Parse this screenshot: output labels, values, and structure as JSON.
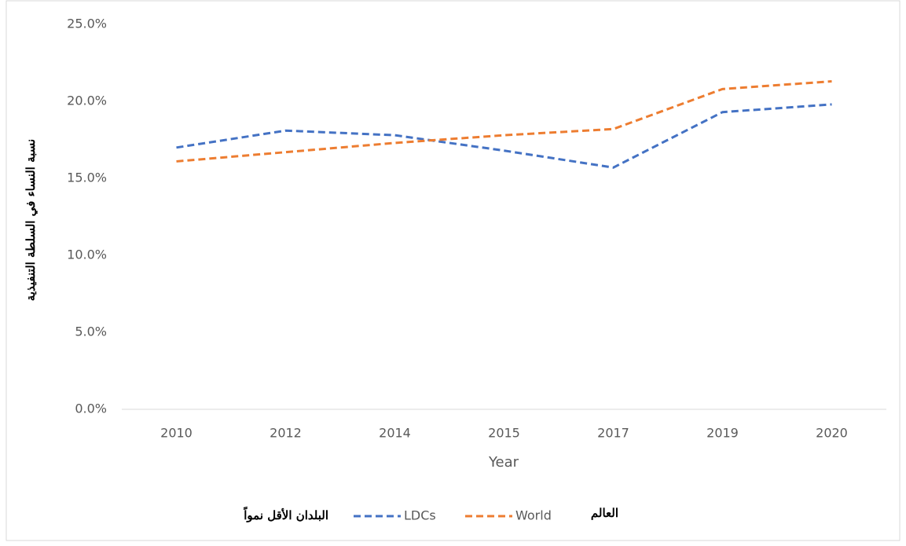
{
  "chart_data": {
    "type": "line",
    "y_label": "نسبة النساء في السلطة التنفيذية",
    "x_label": "Year",
    "categories": [
      "2010",
      "2012",
      "2014",
      "2015",
      "2017",
      "2019",
      "2020"
    ],
    "series": [
      {
        "name": "LDCs",
        "color": "#4472c4",
        "values": [
          17.0,
          18.1,
          17.8,
          16.8,
          15.7,
          19.3,
          19.8
        ]
      },
      {
        "name": "World",
        "color": "#ed7d31",
        "values": [
          16.1,
          16.7,
          17.3,
          17.8,
          18.2,
          20.8,
          21.3
        ]
      }
    ],
    "legend_annotations": [
      "البلدان الأقل نمواً",
      "العالم"
    ],
    "ylim": [
      0,
      25
    ],
    "yticks": [
      {
        "value": 0,
        "label": "0.0%"
      },
      {
        "value": 5,
        "label": "5.0%"
      },
      {
        "value": 10,
        "label": "10.0%"
      },
      {
        "value": 15,
        "label": "15.0%"
      },
      {
        "value": 20,
        "label": "20.0%"
      },
      {
        "value": 25,
        "label": "25.0%"
      }
    ],
    "grid": false,
    "line_style": "dashed",
    "legend_position": "bottom"
  }
}
